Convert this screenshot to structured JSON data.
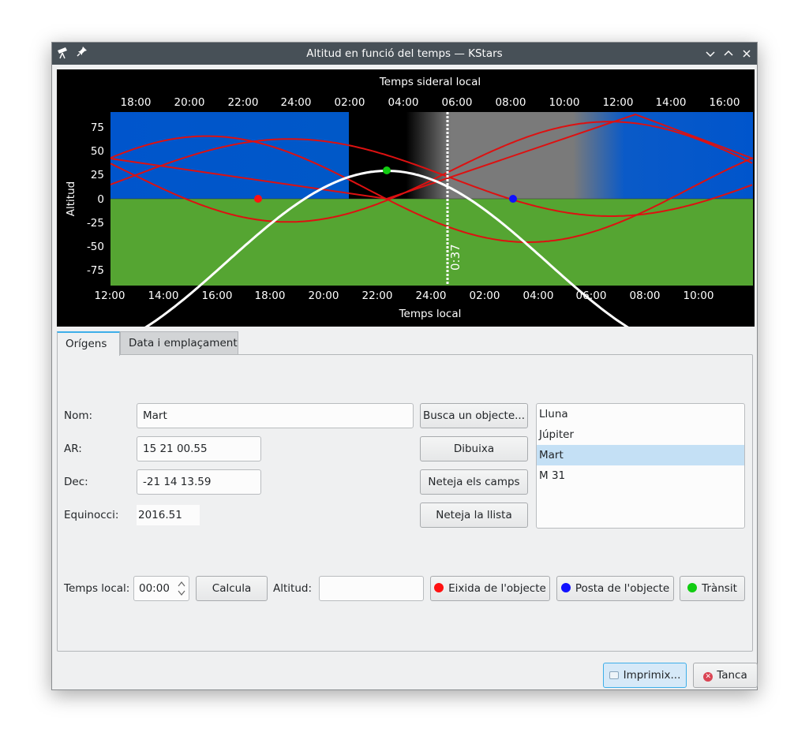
{
  "window": {
    "title": "Altitud en funció del temps — KStars"
  },
  "plot": {
    "top_axis_label": "Temps sideral local",
    "bottom_axis_label": "Temps local",
    "y_axis_label": "Altitud",
    "top_ticks": [
      "18:00",
      "20:00",
      "22:00",
      "24:00",
      "02:00",
      "04:00",
      "06:00",
      "08:00",
      "10:00",
      "12:00",
      "14:00",
      "16:00"
    ],
    "bottom_ticks": [
      "12:00",
      "14:00",
      "16:00",
      "18:00",
      "20:00",
      "22:00",
      "24:00",
      "02:00",
      "04:00",
      "06:00",
      "08:00",
      "10:00"
    ],
    "y_ticks": [
      "75",
      "50",
      "25",
      "0",
      "-25",
      "-50",
      "-75"
    ],
    "current_time_label": "0:37",
    "colors": {
      "day": "#0055cc",
      "night": "#000000",
      "twilight": "#7a7a7a",
      "ground": "#55a532",
      "curve": "#dd1111",
      "highlight": "#ffffff",
      "rise": "#ff1111",
      "set": "#1111ff",
      "transit": "#11cc11"
    }
  },
  "tabs": [
    {
      "label": "Orígens"
    },
    {
      "label": "Data i emplaçament"
    }
  ],
  "form": {
    "name_label": "Nom:",
    "name_value": "Mart",
    "ra_label": "AR:",
    "ra_value": "15 21 00.55",
    "dec_label": "Dec:",
    "dec_value": "-21 14 13.59",
    "epoch_label": "Equinocci:",
    "epoch_value": "2016.51",
    "find_button": "Busca un objecte...",
    "plot_button": "Dibuixa",
    "clear_fields_button": "Neteja els camps",
    "clear_list_button": "Neteja la llista"
  },
  "object_list": [
    "Lluna",
    "Júpiter",
    "Mart",
    "M 31"
  ],
  "object_list_selected": "Mart",
  "calc": {
    "local_time_label": "Temps local:",
    "local_time_value": "00:00",
    "compute_button": "Calcula",
    "altitude_label": "Altitud:",
    "altitude_value": "",
    "rise_button": "Eixida de l'objecte",
    "set_button": "Posta de l'objecte",
    "transit_button": "Trànsit"
  },
  "footer": {
    "print_button": "Imprimix...",
    "close_button": "Tanca"
  }
}
